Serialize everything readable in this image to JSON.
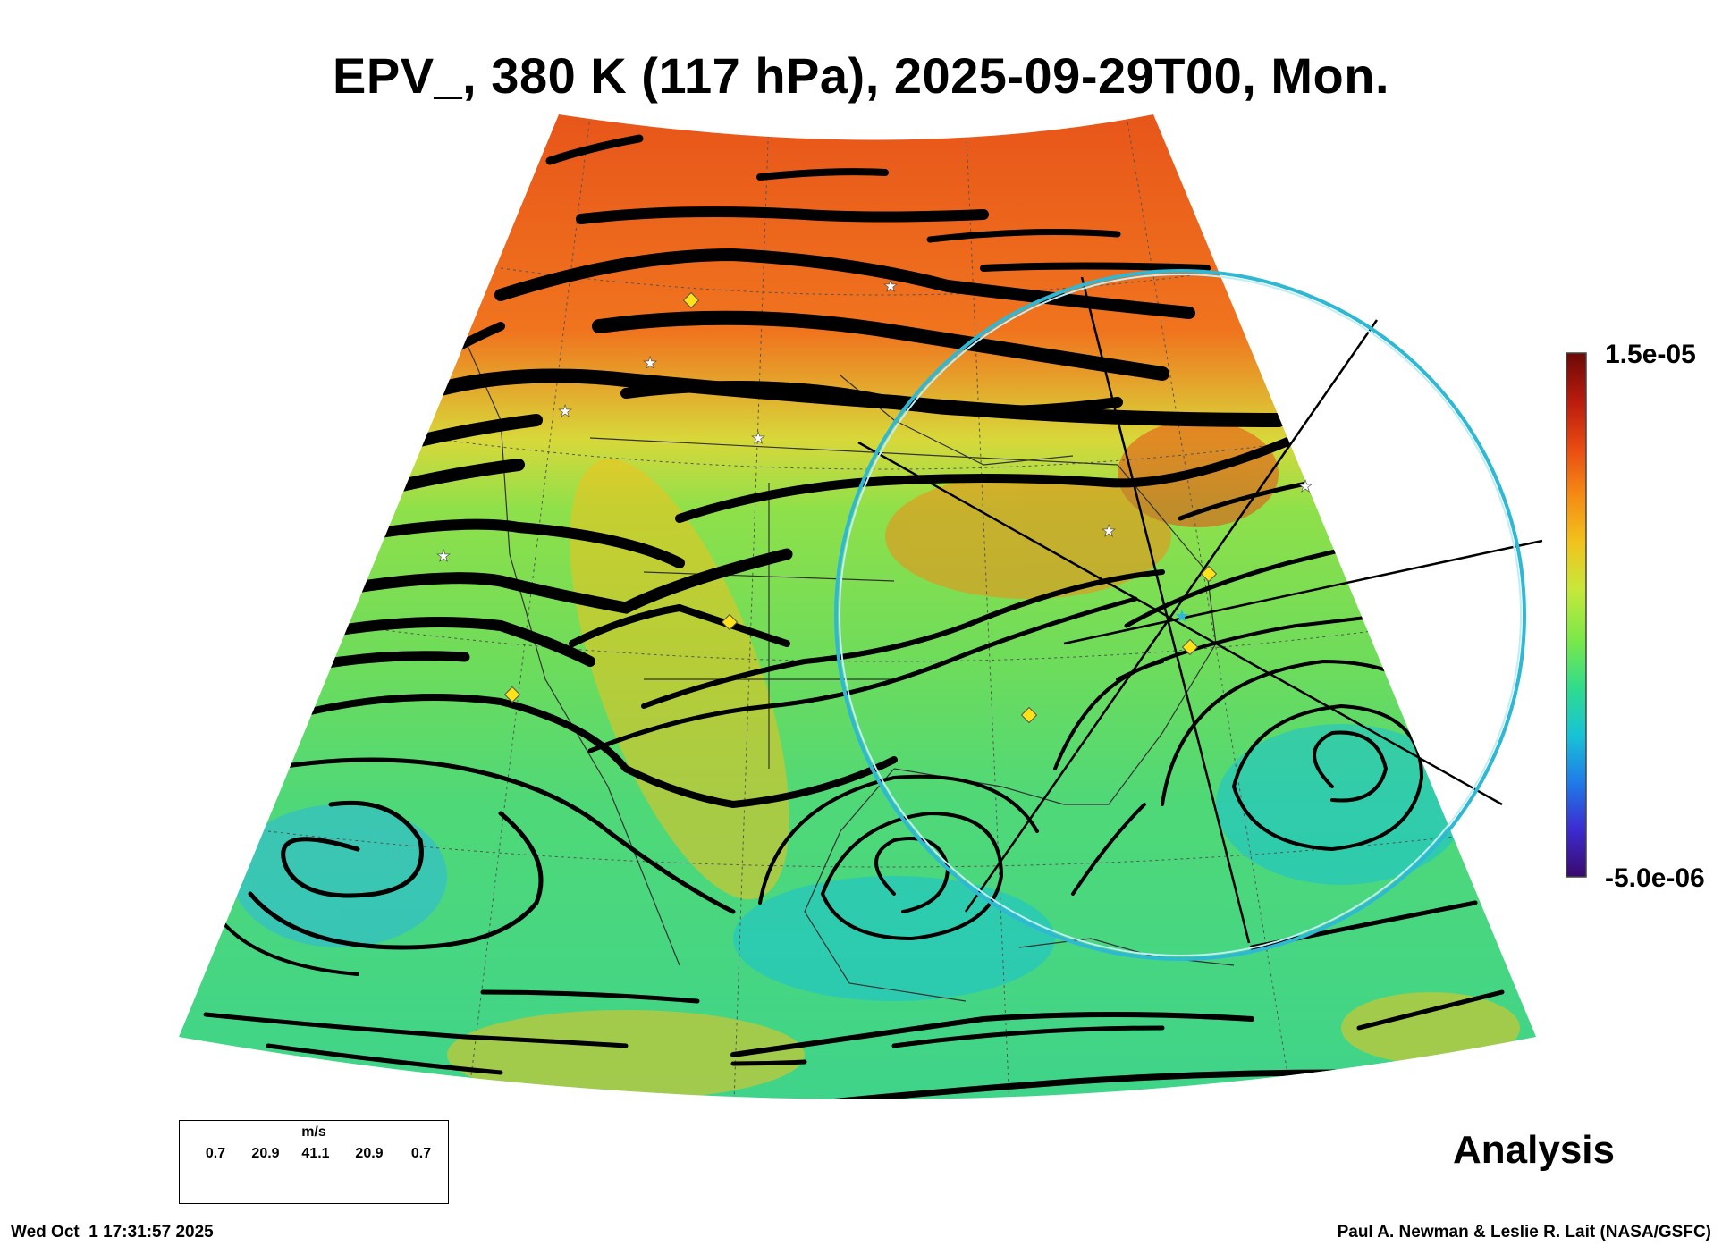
{
  "title": "EPV_, 380 K (117 hPa), 2025-09-29T00, Mon.",
  "colorbar": {
    "max_label": "1.5e-05",
    "min_label": "-5.0e-06",
    "colors": [
      "#3a0a6b",
      "#3c2bd0",
      "#1f7be8",
      "#18c3d6",
      "#2fdc8c",
      "#79e84a",
      "#c8e83a",
      "#f2c21c",
      "#f58a14",
      "#e84a12",
      "#b81a0e",
      "#6a0a06"
    ]
  },
  "product_label": "Analysis",
  "wind_legend": {
    "unit": "m/s",
    "values": [
      "0.7",
      "20.9",
      "41.1",
      "20.9",
      "0.7"
    ]
  },
  "footer": {
    "timestamp": "Wed Oct  1 17:31:57 2025",
    "credit": "Paul A. Newman & Leslie R. Lait (NASA/GSFC)"
  },
  "overlay": {
    "circle_color": "#2fb8d4",
    "marker_diamond_color": "#ffe21a",
    "marker_star_color": "#ffffff"
  }
}
